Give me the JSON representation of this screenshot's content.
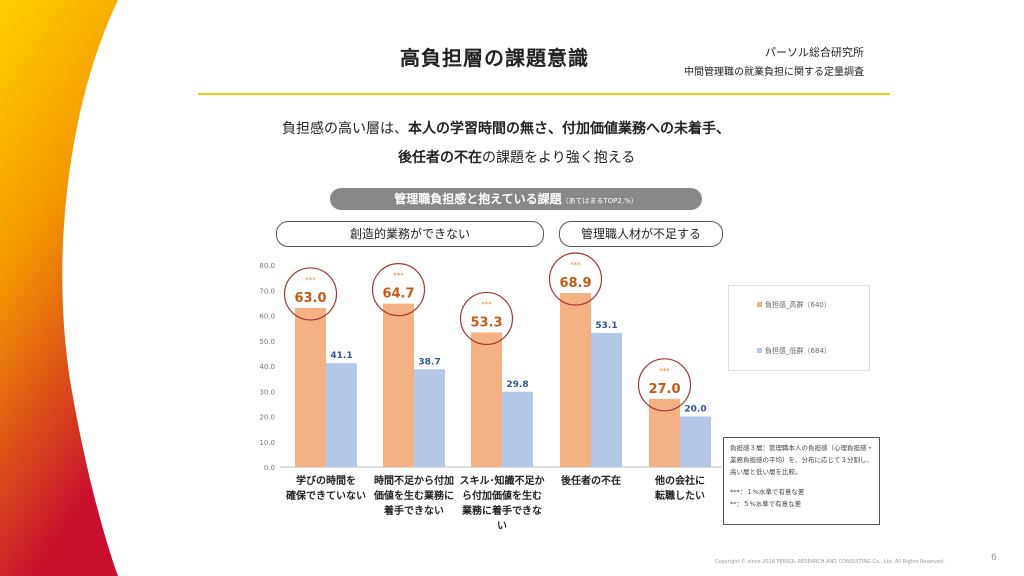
{
  "header": {
    "title": "高負担層の課題意識",
    "org": "パーソル総合研究所",
    "survey": "中間管理職の就業負担に関する定量調査"
  },
  "lead": {
    "line1_pre": "負担感の高い層は、",
    "line1_bold": "本人の学習時間の無さ、付加価値業務への未着手、",
    "line2_bold": "後任者の不在",
    "line2_post": "の課題をより強く抱える"
  },
  "pill": {
    "label": "管理職負担感と抱えている課題",
    "sub": "（あてはまるTOP2,%）"
  },
  "categories_groups": [
    "創造的業務ができない",
    "管理職人材が不足する"
  ],
  "chart_data": {
    "type": "bar",
    "categories": [
      "学びの時間を\n確保できていない",
      "時間不足から付加\n価値を生む業務に\n着手できない",
      "スキル･知識不足か\nら付加価値を生む\n業務に着手できな\nい",
      "後任者の不在",
      "他の会社に\n転職したい"
    ],
    "series": [
      {
        "name": "負担感_高群（640）",
        "color": "#f4b183",
        "label_color": "#c55a11",
        "values": [
          63.0,
          64.7,
          53.3,
          68.9,
          27.0
        ],
        "significance": [
          "***",
          "***",
          "***",
          "***",
          "***"
        ]
      },
      {
        "name": "負担感_低群（684）",
        "color": "#b4c7e7",
        "label_color": "#2f5597",
        "values": [
          41.1,
          38.7,
          29.8,
          53.1,
          20.0
        ]
      }
    ],
    "yticks": [
      "0.0",
      "10.0",
      "20.0",
      "30.0",
      "40.0",
      "50.0",
      "60.0",
      "70.0",
      "80.0"
    ],
    "ylim": [
      0,
      80
    ],
    "grid": false,
    "legend": "right"
  },
  "note": {
    "lines": [
      "負担感３層：管理職本人の負担感（心理負担感・業務負担感の平均）を、分布に応じて３分割し、高い層と低い層を比較。",
      "***：１%水準で有意な差",
      "**：５%水準で有意な差"
    ]
  },
  "footer": {
    "copyright": "Copyright © since 2016 PERSOL RESEARCH AND CONSULTING Co., Ltd. All Rights Reserved.",
    "page": "6"
  }
}
